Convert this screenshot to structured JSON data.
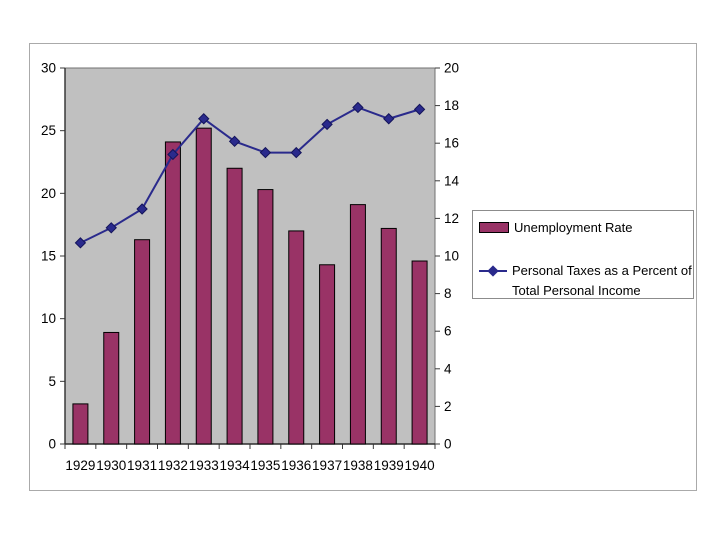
{
  "chart_data": {
    "type": "bar+line",
    "title": "",
    "categories": [
      "1929",
      "1930",
      "1931",
      "1932",
      "1933",
      "1934",
      "1935",
      "1936",
      "1937",
      "1938",
      "1939",
      "1940"
    ],
    "series": [
      {
        "name": "Unemployment Rate",
        "type": "bar",
        "axis": "left",
        "color": "#993366",
        "border_color": "#000000",
        "values": [
          3.2,
          8.9,
          16.3,
          24.1,
          25.2,
          22.0,
          20.3,
          17.0,
          14.3,
          19.1,
          17.2,
          14.6
        ]
      },
      {
        "name": "Personal Taxes as a Percent of Total Personal Income",
        "type": "line",
        "axis": "right",
        "color": "#2A2A8C",
        "marker": "diamond",
        "values": [
          10.7,
          11.5,
          12.5,
          15.4,
          17.3,
          16.1,
          15.5,
          15.5,
          17.0,
          17.9,
          17.3,
          17.8
        ]
      }
    ],
    "left_axis": {
      "min": 0,
      "max": 30,
      "step": 5,
      "ticks": [
        "0",
        "5",
        "10",
        "15",
        "20",
        "25",
        "30"
      ]
    },
    "right_axis": {
      "min": 0,
      "max": 20,
      "step": 2,
      "ticks": [
        "0",
        "2",
        "4",
        "6",
        "8",
        "10",
        "12",
        "14",
        "16",
        "18",
        "20"
      ]
    },
    "plot_background": "#C0C0C0",
    "grid": false,
    "legend_position": "right"
  },
  "legend": {
    "entry1_label": "Unemployment Rate",
    "entry2_line1": "Personal Taxes as a Percent of",
    "entry2_line2": "Total Personal Income"
  }
}
